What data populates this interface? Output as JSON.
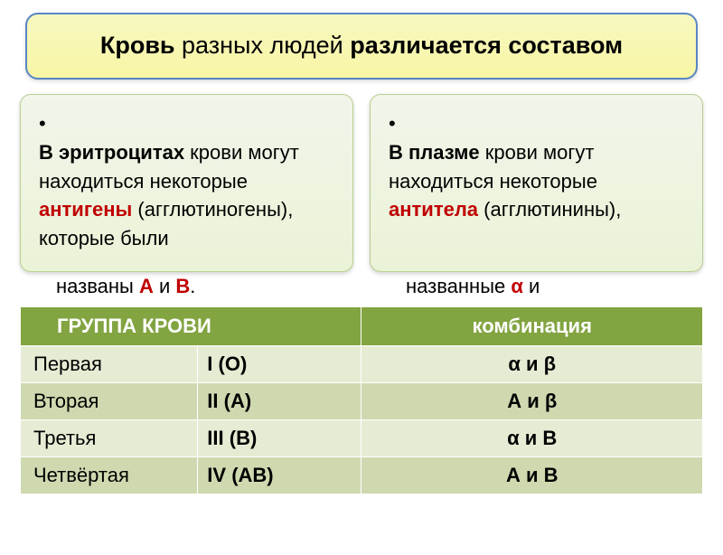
{
  "colors": {
    "title_bg_top": "#f6f8c0",
    "title_bg_bottom": "#f9f6a5",
    "title_border": "#5a86c4",
    "card_bg_top": "#f1f5ea",
    "card_bg_bottom": "#eaf3d7",
    "card_border": "#b9cf8e",
    "table_header_bg": "#82a441",
    "table_header_text": "#ffffff",
    "table_row_odd": "#e6ecd4",
    "table_row_even": "#ced9b0",
    "accent_red": "#c00000"
  },
  "title": {
    "parts": [
      {
        "text": "Кровь",
        "bold": true
      },
      {
        "text": " разных людей ",
        "bold": false
      },
      {
        "text": "различается составом",
        "bold": true
      }
    ],
    "fontsize": 27
  },
  "cards": {
    "left": {
      "bullet": "•",
      "lines_in_card": [
        {
          "text": "В эритроцитах",
          "bold": true
        },
        {
          "text": " крови могут находиться некоторые ",
          "bold": false
        },
        {
          "text": "антигены",
          "red": true
        },
        {
          "text": " (агглютиногены), которые были",
          "bold": false
        }
      ],
      "line_after": [
        {
          "text": "названы        ",
          "bold": false
        },
        {
          "text": "А",
          "red": true
        },
        {
          "text": " и ",
          "bold": false
        },
        {
          "text": "В",
          "red": true
        },
        {
          "text": ".",
          "bold": false
        }
      ]
    },
    "right": {
      "bullet": "•",
      "lines_in_card": [
        {
          "text": "В плазме",
          "bold": true
        },
        {
          "text": " крови могут находиться некоторые ",
          "bold": false
        },
        {
          "text": "антитела",
          "red": true
        },
        {
          "text": " (агглютинины),",
          "bold": false
        }
      ],
      "line_after": [
        {
          "text": "названные     ",
          "bold": false
        },
        {
          "text": "α",
          "red": true
        },
        {
          "text": " и",
          "bold": false
        }
      ]
    }
  },
  "table": {
    "headers": [
      "ГРУППА КРОВИ",
      "комбинация"
    ],
    "rows": [
      {
        "name": "Первая",
        "notation": "I (О)",
        "combo": "α и β"
      },
      {
        "name": "Вторая",
        "notation": "II (А)",
        "combo": "А и β"
      },
      {
        "name": "Третья",
        "notation": "III (В)",
        "combo": "α и В"
      },
      {
        "name": "Четвёртая",
        "notation": "IV (АВ)",
        "combo": "А и В"
      }
    ],
    "fontsize": 22
  }
}
